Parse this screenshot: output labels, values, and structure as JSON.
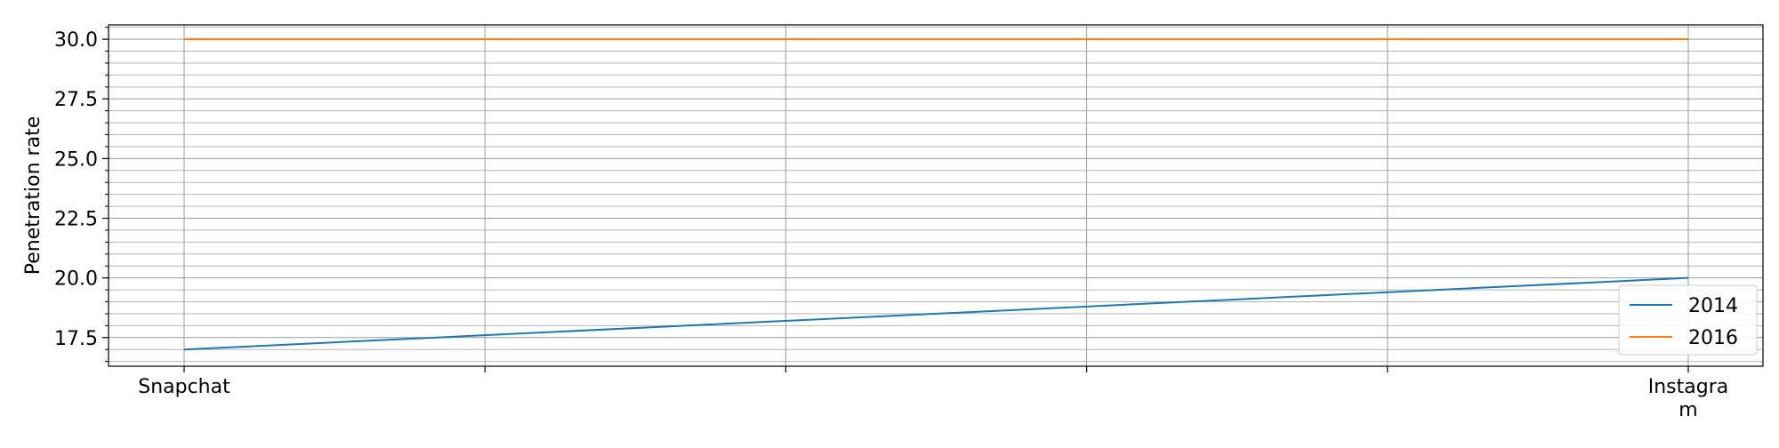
{
  "chart_data": {
    "type": "line",
    "title": "",
    "xlabel": "",
    "ylabel": "Penetration rate",
    "categories": [
      "Snapchat",
      "",
      "",
      "",
      "",
      "Instagram"
    ],
    "category_tick_labels": [
      [
        "Snapchat"
      ],
      [],
      [],
      [],
      [],
      [
        "Instagra",
        "m"
      ]
    ],
    "series": [
      {
        "name": "2014",
        "color": "#1f77b4",
        "values": [
          17.0,
          null,
          null,
          null,
          null,
          20.0
        ]
      },
      {
        "name": "2016",
        "color": "#ff7f0e",
        "values": [
          30.0,
          null,
          null,
          null,
          null,
          30.0
        ]
      }
    ],
    "y_ticks": [
      17.5,
      20.0,
      22.5,
      25.0,
      27.5,
      30.0
    ],
    "y_tick_labels": [
      "17.5",
      "20.0",
      "22.5",
      "25.0",
      "27.5",
      "30.0"
    ],
    "ylim": [
      16.3,
      30.6
    ],
    "y_minor_step": 0.5,
    "grid": true,
    "legend_position": "bottom-right"
  }
}
